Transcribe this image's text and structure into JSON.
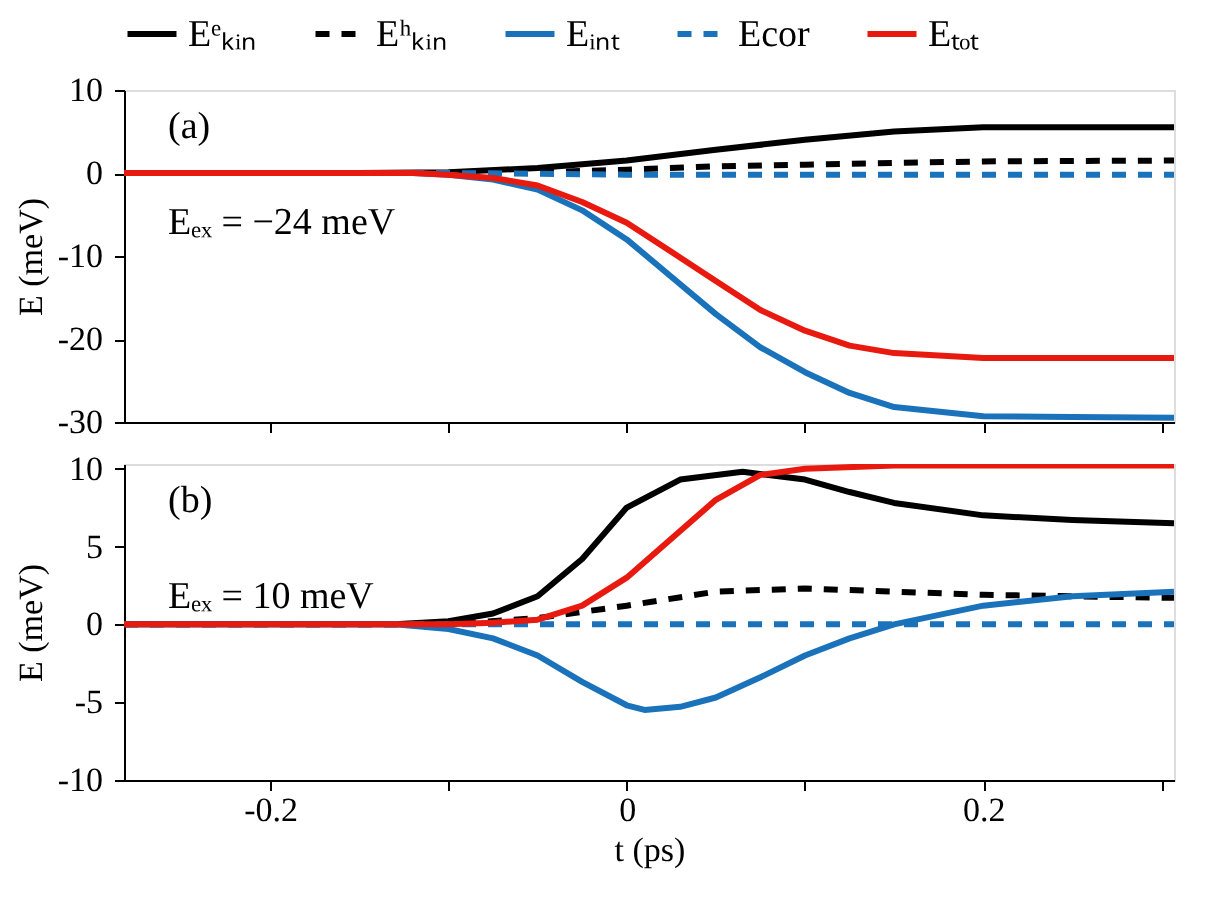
{
  "chart_data": [
    {
      "type": "line",
      "ylabel": "E (meV)",
      "annotations": [
        "(a)",
        "Eₑₓ = −24 meV"
      ],
      "xlim": [
        -0.282,
        0.307
      ],
      "xticks": [
        {
          "value": -0.2,
          "label": null
        },
        {
          "value": -0.1,
          "label": null
        },
        {
          "value": 0,
          "label": null
        },
        {
          "value": 0.1,
          "label": null
        },
        {
          "value": 0.2,
          "label": null
        },
        {
          "value": 0.3,
          "label": null
        }
      ],
      "ylim": [
        -30,
        10
      ],
      "yticks": [
        10,
        0,
        -10,
        -20,
        -30
      ],
      "tick_labels": "y",
      "legend": "top",
      "grid": false,
      "marker": "none",
      "series": [
        {
          "name": "Eᵉₖᵢₙ",
          "color": "#000000",
          "line_style": "solid",
          "x": [
            -0.282,
            -0.15,
            -0.1,
            -0.05,
            0,
            0.05,
            0.1,
            0.15,
            0.2,
            0.25,
            0.307
          ],
          "values": [
            0,
            0,
            0.1,
            0.6,
            1.5,
            2.8,
            4.0,
            5.0,
            5.5,
            5.5,
            5.5
          ]
        },
        {
          "name": "Eʰₖᵢₙ",
          "color": "#000000",
          "line_style": "dashed",
          "x": [
            -0.282,
            -0.1,
            -0.05,
            0,
            0.05,
            0.1,
            0.15,
            0.2,
            0.307
          ],
          "values": [
            0,
            0,
            0.1,
            0.4,
            0.8,
            1.0,
            1.2,
            1.4,
            1.5
          ]
        },
        {
          "name": "Eᵢₙₜ",
          "color": "#1a72bb",
          "line_style": "solid",
          "x": [
            -0.282,
            -0.12,
            -0.1,
            -0.075,
            -0.05,
            -0.025,
            0,
            0.025,
            0.05,
            0.075,
            0.1,
            0.125,
            0.15,
            0.2,
            0.25,
            0.307
          ],
          "values": [
            0,
            0,
            -0.2,
            -0.8,
            -2,
            -4.5,
            -8,
            -12.5,
            -17,
            -21,
            -24,
            -26.5,
            -28.2,
            -29.3,
            -29.4,
            -29.5
          ]
        },
        {
          "name": "Ecor",
          "color": "#1a72bb",
          "line_style": "dashed",
          "x": [
            -0.282,
            -0.1,
            0,
            0.1,
            0.307
          ],
          "values": [
            0,
            0,
            -0.2,
            -0.2,
            -0.2
          ]
        },
        {
          "name": "Eₜₒₜ",
          "color": "#e8190f",
          "line_style": "solid",
          "x": [
            -0.282,
            -0.12,
            -0.1,
            -0.075,
            -0.05,
            -0.025,
            0,
            0.025,
            0.05,
            0.075,
            0.1,
            0.125,
            0.15,
            0.2,
            0.25,
            0.307
          ],
          "values": [
            0,
            0,
            -0.2,
            -0.6,
            -1.5,
            -3.5,
            -6,
            -9.5,
            -13,
            -16.5,
            -19,
            -20.8,
            -21.7,
            -22.3,
            -22.3,
            -22.3
          ]
        }
      ]
    },
    {
      "type": "line",
      "xlabel": "t (ps)",
      "ylabel": "E (meV)",
      "annotations": [
        "(b)",
        "Eₑₓ = 10 meV"
      ],
      "xlim": [
        -0.282,
        0.307
      ],
      "xticks": [
        -0.2,
        {
          "value": -0.1,
          "label": null
        },
        0,
        {
          "value": 0.1,
          "label": null
        },
        0.2,
        {
          "value": 0.3,
          "label": null
        }
      ],
      "ylim": [
        -10,
        10.3
      ],
      "yticks": [
        10,
        5,
        0,
        -5,
        -10
      ],
      "grid": false,
      "marker": "none",
      "series": [
        {
          "color": "#000000",
          "line_style": "solid",
          "x": [
            -0.282,
            -0.13,
            -0.1,
            -0.075,
            -0.05,
            -0.025,
            0,
            0.03,
            0.065,
            0.1,
            0.125,
            0.15,
            0.2,
            0.25,
            0.307
          ],
          "values": [
            0,
            0,
            0.2,
            0.7,
            1.8,
            4.2,
            7.5,
            9.3,
            9.8,
            9.3,
            8.5,
            7.8,
            7.0,
            6.7,
            6.5
          ]
        },
        {
          "color": "#000000",
          "line_style": "dashed",
          "x": [
            -0.282,
            -0.1,
            -0.05,
            0,
            0.05,
            0.1,
            0.15,
            0.2,
            0.25,
            0.307
          ],
          "values": [
            0,
            0,
            0.4,
            1.2,
            2.1,
            2.3,
            2.1,
            1.9,
            1.8,
            1.7
          ]
        },
        {
          "color": "#1a72bb",
          "line_style": "solid",
          "x": [
            -0.282,
            -0.13,
            -0.1,
            -0.075,
            -0.05,
            -0.025,
            0,
            0.01,
            0.03,
            0.05,
            0.075,
            0.1,
            0.125,
            0.15,
            0.2,
            0.25,
            0.307
          ],
          "values": [
            0,
            0,
            -0.3,
            -0.9,
            -2.0,
            -3.7,
            -5.2,
            -5.5,
            -5.3,
            -4.7,
            -3.4,
            -2.0,
            -0.9,
            0,
            1.2,
            1.8,
            2.1
          ]
        },
        {
          "color": "#1a72bb",
          "line_style": "dashed",
          "x": [
            -0.282,
            0,
            0.307
          ],
          "values": [
            0,
            0,
            0
          ]
        },
        {
          "color": "#e8190f",
          "line_style": "solid",
          "x": [
            -0.282,
            -0.1,
            -0.075,
            -0.05,
            -0.025,
            0,
            0.025,
            0.05,
            0.075,
            0.1,
            0.15,
            0.2,
            0.307
          ],
          "values": [
            0,
            0,
            0.1,
            0.3,
            1.2,
            3.0,
            5.5,
            8.0,
            9.6,
            10.0,
            10.2,
            10.2,
            10.2
          ]
        }
      ]
    }
  ]
}
